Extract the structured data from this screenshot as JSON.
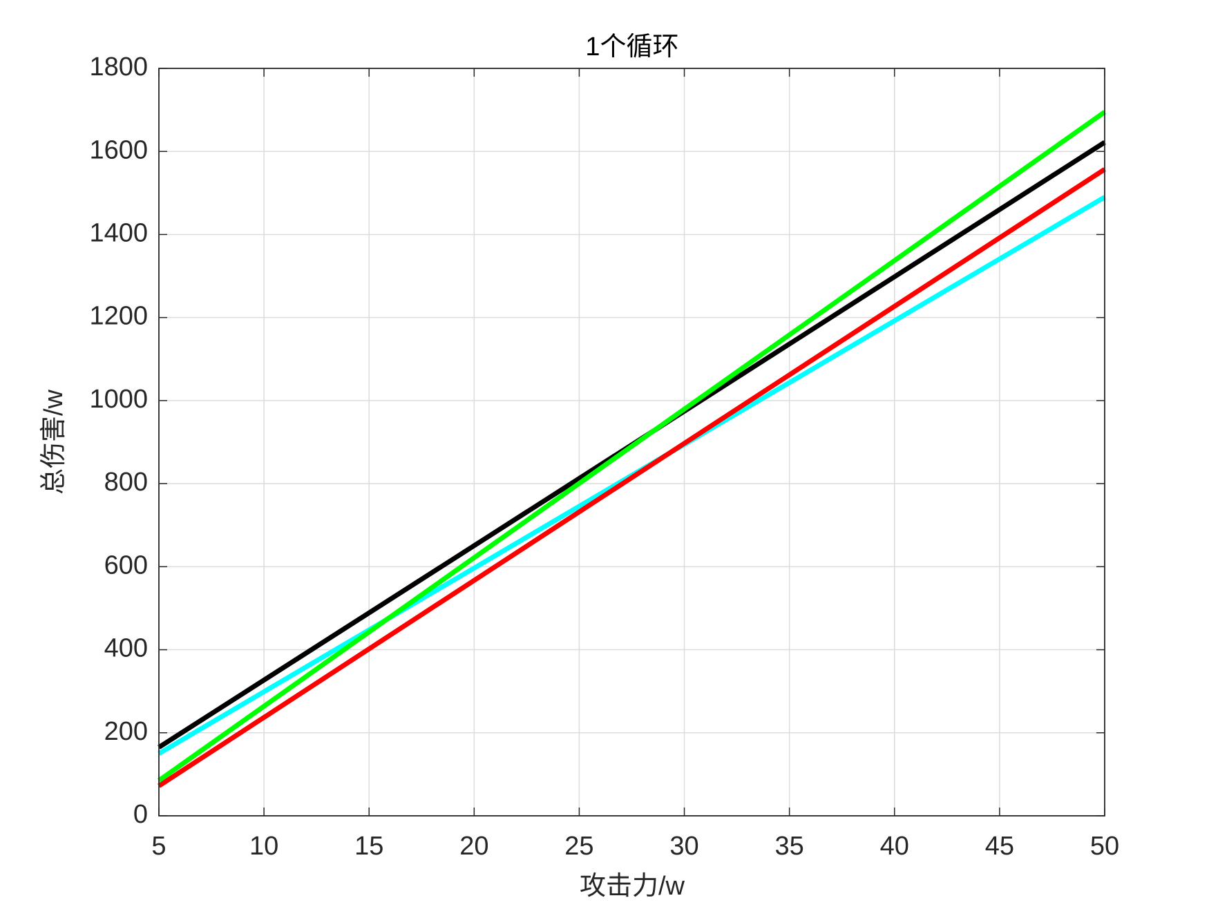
{
  "chart_data": {
    "type": "line",
    "title": "1个循环",
    "x_label": "攻击力/w",
    "y_label": "总伤害/w",
    "x": [
      5,
      50
    ],
    "series": [
      {
        "color": "#00ffff",
        "values": [
          150,
          1490
        ]
      },
      {
        "color": "#ff0000",
        "values": [
          72,
          1557
        ]
      },
      {
        "color": "#000000",
        "values": [
          165,
          1622
        ]
      },
      {
        "color": "#00ff00",
        "values": [
          85,
          1695
        ]
      }
    ],
    "xlim": [
      5,
      50
    ],
    "xticks": [
      5,
      10,
      15,
      20,
      25,
      30,
      35,
      40,
      45,
      50
    ],
    "ylim": [
      0,
      1800
    ],
    "yticks": [
      0,
      200,
      400,
      600,
      800,
      1000,
      1200,
      1400,
      1600,
      1800
    ],
    "grid": true
  }
}
